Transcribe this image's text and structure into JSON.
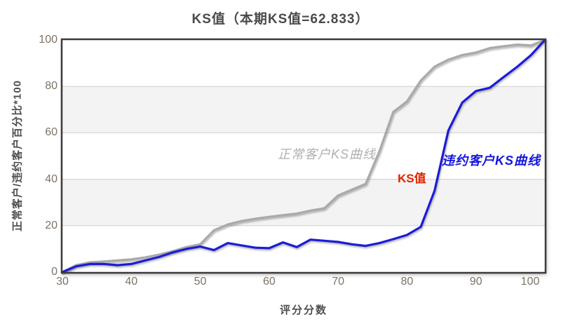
{
  "title": "KS值（本期KS值=62.833）",
  "chart_data": {
    "type": "line",
    "title": "KS值（本期KS值=62.833）",
    "ks_value": "62.833",
    "xlabel": "评分分数",
    "ylabel": "正常客户/违约客户百分比*100",
    "xlim": [
      30,
      100
    ],
    "ylim": [
      0,
      100
    ],
    "x_ticks": [
      30,
      40,
      50,
      60,
      70,
      80,
      90,
      100
    ],
    "y_ticks": [
      0,
      20,
      40,
      60,
      80,
      100
    ],
    "grid": "on",
    "band_color": "#f3f3f3",
    "grid_color": "#cfcfcf",
    "legend_position": "inline-annotations",
    "x": [
      30,
      32,
      34,
      36,
      38,
      40,
      42,
      44,
      46,
      48,
      50,
      52,
      54,
      56,
      58,
      60,
      62,
      64,
      66,
      68,
      70,
      72,
      74,
      76,
      78,
      80,
      82,
      84,
      86,
      88,
      90,
      92,
      94,
      96,
      98,
      100
    ],
    "series": [
      {
        "name": "正常客户KS曲线",
        "color": "#a9a9a9",
        "values": [
          0,
          3,
          4.2,
          4.6,
          5,
          5.5,
          6.3,
          7.5,
          9,
          10.8,
          12,
          18,
          20.5,
          22,
          23,
          23.8,
          24.5,
          25.2,
          26.5,
          27.5,
          33,
          35.5,
          38,
          52,
          69,
          73.5,
          82.5,
          88.5,
          91.5,
          93.5,
          94.6,
          96.5,
          97.3,
          98,
          97.6,
          100
        ]
      },
      {
        "name": "违约客户KS曲线",
        "color": "#1c1cd6",
        "values": [
          0,
          2.5,
          3.5,
          3.5,
          3,
          3.5,
          5,
          6.5,
          8.5,
          10,
          11,
          9.5,
          12.5,
          11.5,
          10.5,
          10.3,
          12.8,
          10.8,
          14,
          13.5,
          13,
          12,
          11.3,
          12.5,
          14.2,
          16,
          19.5,
          35,
          61,
          73,
          78,
          79.4,
          84,
          88.5,
          93.5,
          100
        ]
      }
    ],
    "annotations": {
      "ks_line": {
        "x": 78,
        "y_from": 14,
        "y_to": 68,
        "label": "KS值",
        "color": "#d62b00"
      }
    }
  }
}
